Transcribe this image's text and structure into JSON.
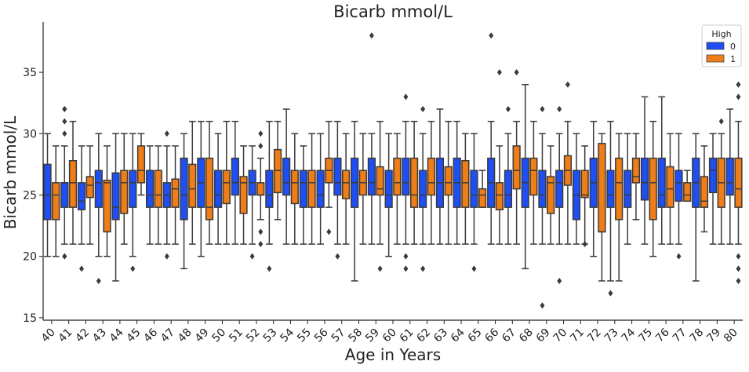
{
  "chart_data": {
    "type": "box",
    "title": "Bicarb mmol/L",
    "xlabel": "Age in Years",
    "ylabel": "Bicarb mmol/L",
    "ylim": [
      14.8,
      39.1
    ],
    "yticks": [
      15,
      20,
      25,
      30,
      35
    ],
    "grid": false,
    "legend": {
      "title": "High",
      "position": "top-right",
      "entries": [
        {
          "label": "0",
          "color": "#1f4ef5"
        },
        {
          "label": "1",
          "color": "#f07d17"
        }
      ]
    },
    "categories": [
      "40",
      "41",
      "42",
      "43",
      "44",
      "45",
      "46",
      "47",
      "48",
      "49",
      "50",
      "51",
      "52",
      "53",
      "54",
      "55",
      "56",
      "57",
      "58",
      "59",
      "60",
      "61",
      "62",
      "63",
      "64",
      "65",
      "66",
      "67",
      "68",
      "69",
      "70",
      "71",
      "72",
      "73",
      "74",
      "75",
      "76",
      "77",
      "78",
      "79",
      "80"
    ],
    "series": [
      {
        "name": "0",
        "color": "#1f4ef5",
        "boxes": [
          {
            "wlo": 20,
            "q1": 23,
            "med": 25,
            "q3": 27.5,
            "whi": 30,
            "out": []
          },
          {
            "wlo": 21,
            "q1": 24,
            "med": 26,
            "q3": 26,
            "whi": 29,
            "out": [
              20,
              20,
              30,
              31,
              32,
              32
            ]
          },
          {
            "wlo": 21,
            "q1": 23.8,
            "med": 24.5,
            "q3": 26,
            "whi": 29,
            "out": [
              19
            ]
          },
          {
            "wlo": 20,
            "q1": 24,
            "med": 26,
            "q3": 27,
            "whi": 30,
            "out": [
              18
            ]
          },
          {
            "wlo": 18,
            "q1": 23,
            "med": 24,
            "q3": 26.8,
            "whi": 30,
            "out": []
          },
          {
            "wlo": 20,
            "q1": 24,
            "med": 26,
            "q3": 27,
            "whi": 30,
            "out": [
              19
            ]
          },
          {
            "wlo": 21,
            "q1": 24,
            "med": 25,
            "q3": 27,
            "whi": 29,
            "out": []
          },
          {
            "wlo": 21,
            "q1": 24,
            "med": 25,
            "q3": 26,
            "whi": 29,
            "out": [
              20,
              30
            ]
          },
          {
            "wlo": 19,
            "q1": 23,
            "med": 25,
            "q3": 28,
            "whi": 30,
            "out": []
          },
          {
            "wlo": 20,
            "q1": 24,
            "med": 26,
            "q3": 28,
            "whi": 31,
            "out": []
          },
          {
            "wlo": 21,
            "q1": 24,
            "med": 25,
            "q3": 27,
            "whi": 30,
            "out": []
          },
          {
            "wlo": 21,
            "q1": 25,
            "med": 26,
            "q3": 28,
            "whi": 31,
            "out": []
          },
          {
            "wlo": 21,
            "q1": 25,
            "med": 26,
            "q3": 27,
            "whi": 29,
            "out": [
              20
            ]
          },
          {
            "wlo": 21,
            "q1": 24,
            "med": 25,
            "q3": 27,
            "whi": 31,
            "out": [
              19
            ]
          },
          {
            "wlo": 21,
            "q1": 25,
            "med": 26,
            "q3": 28,
            "whi": 32,
            "out": []
          },
          {
            "wlo": 21,
            "q1": 24,
            "med": 26,
            "q3": 27,
            "whi": 29,
            "out": []
          },
          {
            "wlo": 21,
            "q1": 24,
            "med": 25,
            "q3": 27,
            "whi": 30,
            "out": []
          },
          {
            "wlo": 21,
            "q1": 25,
            "med": 26,
            "q3": 28,
            "whi": 31,
            "out": [
              20
            ]
          },
          {
            "wlo": 18,
            "q1": 24,
            "med": 26,
            "q3": 28,
            "whi": 31,
            "out": []
          },
          {
            "wlo": 21,
            "q1": 25,
            "med": 26,
            "q3": 28,
            "whi": 30,
            "out": [
              38
            ]
          },
          {
            "wlo": 20,
            "q1": 24,
            "med": 25,
            "q3": 27,
            "whi": 30,
            "out": []
          },
          {
            "wlo": 21,
            "q1": 25,
            "med": 26,
            "q3": 28,
            "whi": 31,
            "out": [
              19,
              20,
              33
            ]
          },
          {
            "wlo": 21,
            "q1": 24,
            "med": 25,
            "q3": 27,
            "whi": 30,
            "out": [
              19,
              32
            ]
          },
          {
            "wlo": 21,
            "q1": 24,
            "med": 26,
            "q3": 28,
            "whi": 32,
            "out": []
          },
          {
            "wlo": 21,
            "q1": 24,
            "med": 26,
            "q3": 28,
            "whi": 31,
            "out": []
          },
          {
            "wlo": 21,
            "q1": 24,
            "med": 25,
            "q3": 27,
            "whi": 30,
            "out": [
              19
            ]
          },
          {
            "wlo": 21,
            "q1": 24,
            "med": 26,
            "q3": 28,
            "whi": 31,
            "out": [
              38
            ]
          },
          {
            "wlo": 21,
            "q1": 24,
            "med": 25,
            "q3": 27,
            "whi": 30,
            "out": [
              32
            ]
          },
          {
            "wlo": 19,
            "q1": 24,
            "med": 26,
            "q3": 28,
            "whi": 34,
            "out": []
          },
          {
            "wlo": 21,
            "q1": 24,
            "med": 25,
            "q3": 27,
            "whi": 30,
            "out": [
              16,
              32
            ]
          },
          {
            "wlo": 21,
            "q1": 24,
            "med": 26,
            "q3": 27,
            "whi": 30,
            "out": [
              18,
              32
            ]
          },
          {
            "wlo": 21,
            "q1": 23,
            "med": 25,
            "q3": 27,
            "whi": 30,
            "out": []
          },
          {
            "wlo": 20,
            "q1": 24,
            "med": 26,
            "q3": 28,
            "whi": 31,
            "out": []
          },
          {
            "wlo": 18,
            "q1": 24,
            "med": 25,
            "q3": 27,
            "whi": 31,
            "out": [
              17
            ]
          },
          {
            "wlo": 21,
            "q1": 24,
            "med": 25,
            "q3": 27,
            "whi": 30,
            "out": []
          },
          {
            "wlo": 21,
            "q1": 24.6,
            "med": 26,
            "q3": 28,
            "whi": 33,
            "out": []
          },
          {
            "wlo": 21,
            "q1": 24,
            "med": 25,
            "q3": 28,
            "whi": 33,
            "out": []
          },
          {
            "wlo": 21,
            "q1": 24.5,
            "med": 26,
            "q3": 27,
            "whi": 30,
            "out": [
              20
            ]
          },
          {
            "wlo": 18,
            "q1": 24,
            "med": 26,
            "q3": 28,
            "whi": 30,
            "out": []
          },
          {
            "wlo": 21,
            "q1": 25.2,
            "med": 27,
            "q3": 28,
            "whi": 30,
            "out": []
          },
          {
            "wlo": 21,
            "q1": 25,
            "med": 26,
            "q3": 28,
            "whi": 32,
            "out": []
          }
        ]
      },
      {
        "name": "1",
        "color": "#f07d17",
        "boxes": [
          {
            "wlo": 20,
            "q1": 23,
            "med": 25,
            "q3": 26,
            "whi": 29,
            "out": []
          },
          {
            "wlo": 21,
            "q1": 24,
            "med": 26,
            "q3": 27.8,
            "whi": 31,
            "out": []
          },
          {
            "wlo": 21,
            "q1": 24.8,
            "med": 25.8,
            "q3": 26.5,
            "whi": 29,
            "out": []
          },
          {
            "wlo": 20,
            "q1": 22,
            "med": 26,
            "q3": 26.2,
            "whi": 29,
            "out": []
          },
          {
            "wlo": 21,
            "q1": 23.5,
            "med": 26,
            "q3": 27,
            "whi": 30,
            "out": []
          },
          {
            "wlo": 25,
            "q1": 26,
            "med": 27,
            "q3": 29,
            "whi": 30,
            "out": []
          },
          {
            "wlo": 21,
            "q1": 24,
            "med": 25,
            "q3": 27,
            "whi": 29,
            "out": []
          },
          {
            "wlo": 21,
            "q1": 24,
            "med": 25.5,
            "q3": 26.3,
            "whi": 29,
            "out": []
          },
          {
            "wlo": 21,
            "q1": 24,
            "med": 25.5,
            "q3": 27.5,
            "whi": 31,
            "out": []
          },
          {
            "wlo": 21,
            "q1": 23,
            "med": 24,
            "q3": 28,
            "whi": 31,
            "out": []
          },
          {
            "wlo": 21,
            "q1": 24.3,
            "med": 26,
            "q3": 27,
            "whi": 31,
            "out": []
          },
          {
            "wlo": 21,
            "q1": 23.5,
            "med": 26,
            "q3": 26.5,
            "whi": 29,
            "out": []
          },
          {
            "wlo": 23,
            "q1": 25,
            "med": 25,
            "q3": 26,
            "whi": 28,
            "out": [
              21,
              22,
              29,
              30
            ]
          },
          {
            "wlo": 23,
            "q1": 25.2,
            "med": 27,
            "q3": 28.7,
            "whi": 31,
            "out": []
          },
          {
            "wlo": 21,
            "q1": 24.3,
            "med": 26,
            "q3": 27,
            "whi": 30,
            "out": []
          },
          {
            "wlo": 21,
            "q1": 24,
            "med": 26,
            "q3": 27,
            "whi": 30,
            "out": []
          },
          {
            "wlo": 24,
            "q1": 26,
            "med": 27,
            "q3": 28,
            "whi": 31,
            "out": [
              22
            ]
          },
          {
            "wlo": 21,
            "q1": 24.7,
            "med": 26,
            "q3": 27,
            "whi": 30,
            "out": []
          },
          {
            "wlo": 21,
            "q1": 25,
            "med": 26,
            "q3": 27,
            "whi": 30,
            "out": []
          },
          {
            "wlo": 21,
            "q1": 25,
            "med": 25.5,
            "q3": 27.3,
            "whi": 31,
            "out": [
              19
            ]
          },
          {
            "wlo": 21,
            "q1": 25,
            "med": 26,
            "q3": 28,
            "whi": 30,
            "out": []
          },
          {
            "wlo": 21,
            "q1": 24,
            "med": 25,
            "q3": 28,
            "whi": 31,
            "out": []
          },
          {
            "wlo": 21,
            "q1": 25,
            "med": 26,
            "q3": 28,
            "whi": 31,
            "out": []
          },
          {
            "wlo": 21,
            "q1": 25,
            "med": 26,
            "q3": 27.3,
            "whi": 31,
            "out": []
          },
          {
            "wlo": 21,
            "q1": 24,
            "med": 26,
            "q3": 27.8,
            "whi": 30,
            "out": []
          },
          {
            "wlo": 24,
            "q1": 24,
            "med": 25,
            "q3": 25.5,
            "whi": 27,
            "out": []
          },
          {
            "wlo": 21,
            "q1": 23.8,
            "med": 25,
            "q3": 26,
            "whi": 29,
            "out": [
              35
            ]
          },
          {
            "wlo": 21,
            "q1": 25.5,
            "med": 27,
            "q3": 29,
            "whi": 31,
            "out": [
              35
            ]
          },
          {
            "wlo": 21,
            "q1": 25,
            "med": 27,
            "q3": 28,
            "whi": 31,
            "out": []
          },
          {
            "wlo": 21,
            "q1": 23.5,
            "med": 26,
            "q3": 26.5,
            "whi": 29,
            "out": []
          },
          {
            "wlo": 21,
            "q1": 25.8,
            "med": 27,
            "q3": 28.2,
            "whi": 31,
            "out": [
              34
            ]
          },
          {
            "wlo": 21,
            "q1": 24.8,
            "med": 25,
            "q3": 27,
            "whi": 29,
            "out": [
              21
            ]
          },
          {
            "wlo": 18,
            "q1": 22,
            "med": 22,
            "q3": 29.2,
            "whi": 30,
            "out": []
          },
          {
            "wlo": 18,
            "q1": 23,
            "med": 26,
            "q3": 28,
            "whi": 30,
            "out": []
          },
          {
            "wlo": 23,
            "q1": 26,
            "med": 26.5,
            "q3": 28,
            "whi": 30,
            "out": []
          },
          {
            "wlo": 20,
            "q1": 23,
            "med": 26,
            "q3": 28,
            "whi": 31,
            "out": []
          },
          {
            "wlo": 21,
            "q1": 24,
            "med": 25.5,
            "q3": 27.3,
            "whi": 30,
            "out": []
          },
          {
            "wlo": 24.5,
            "q1": 24.5,
            "med": 25,
            "q3": 26,
            "whi": 27,
            "out": []
          },
          {
            "wlo": 22,
            "q1": 24,
            "med": 24.5,
            "q3": 26.5,
            "whi": 29,
            "out": []
          },
          {
            "wlo": 21,
            "q1": 24,
            "med": 26,
            "q3": 28,
            "whi": 30,
            "out": [
              31
            ]
          },
          {
            "wlo": 21,
            "q1": 24,
            "med": 25.5,
            "q3": 28,
            "whi": 31,
            "out": [
              18,
              19,
              20,
              33,
              34
            ]
          }
        ]
      }
    ]
  }
}
